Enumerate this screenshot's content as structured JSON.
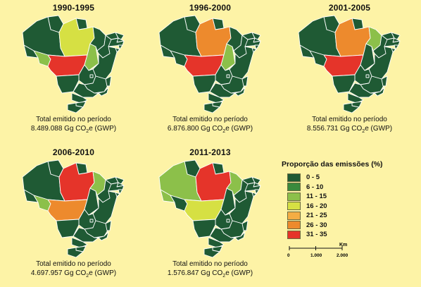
{
  "caption_line1": "Total emitido no período",
  "unit_prefix": "Gg CO",
  "unit_sub": "2",
  "unit_suffix": "e (GWP)",
  "colors": {
    "c0_5": "#1f5a34",
    "c6_10": "#3a8a3d",
    "c11_15": "#8cc04a",
    "c16_20": "#d6e043",
    "c21_25": "#f4ad44",
    "c26_30": "#ed8a2d",
    "c31_35": "#e5342a",
    "border": "#ffffff",
    "background": "#fdf3a6"
  },
  "panels": [
    {
      "period": "1990-1995",
      "total": "8.489.088",
      "colors": {
        "AM": "c0_5",
        "PA": "c16_20",
        "MT": "c31_35",
        "RO": "c11_15",
        "TO": "c11_15"
      }
    },
    {
      "period": "1996-2000",
      "total": "6.876.800",
      "colors": {
        "AM": "c0_5",
        "PA": "c26_30",
        "MT": "c31_35",
        "RO": "c0_5",
        "TO": "c11_15"
      }
    },
    {
      "period": "2001-2005",
      "total": "8.556.731",
      "colors": {
        "AM": "c0_5",
        "PA": "c26_30",
        "MT": "c31_35",
        "RO": "c0_5",
        "TO": "c0_5",
        "MA": "c11_15"
      }
    },
    {
      "period": "2006-2010",
      "total": "4.697.957",
      "colors": {
        "AM": "c0_5",
        "PA": "c31_35",
        "MT": "c26_30",
        "RO": "c11_15",
        "TO": "c0_5",
        "MA": "c11_15"
      }
    },
    {
      "period": "2011-2013",
      "total": "1.576.847",
      "colors": {
        "AM": "c11_15",
        "PA": "c31_35",
        "MT": "c16_20",
        "RO": "c0_5",
        "TO": "c0_5",
        "MA": "c11_15",
        "RR": "c0_5",
        "AC": "c11_15"
      }
    }
  ],
  "legend": {
    "title": "Proporção das emissões (%)",
    "items": [
      {
        "label": "0 - 5",
        "color_key": "c0_5"
      },
      {
        "label": "6 - 10",
        "color_key": "c6_10"
      },
      {
        "label": "11 - 15",
        "color_key": "c11_15"
      },
      {
        "label": "16 - 20",
        "color_key": "c16_20"
      },
      {
        "label": "21 - 25",
        "color_key": "c21_25"
      },
      {
        "label": "26 - 30",
        "color_key": "c26_30"
      },
      {
        "label": "31 - 35",
        "color_key": "c31_35"
      }
    ]
  },
  "scale": {
    "unit": "Km",
    "ticks": [
      "0",
      "1.000",
      "2.000"
    ]
  }
}
